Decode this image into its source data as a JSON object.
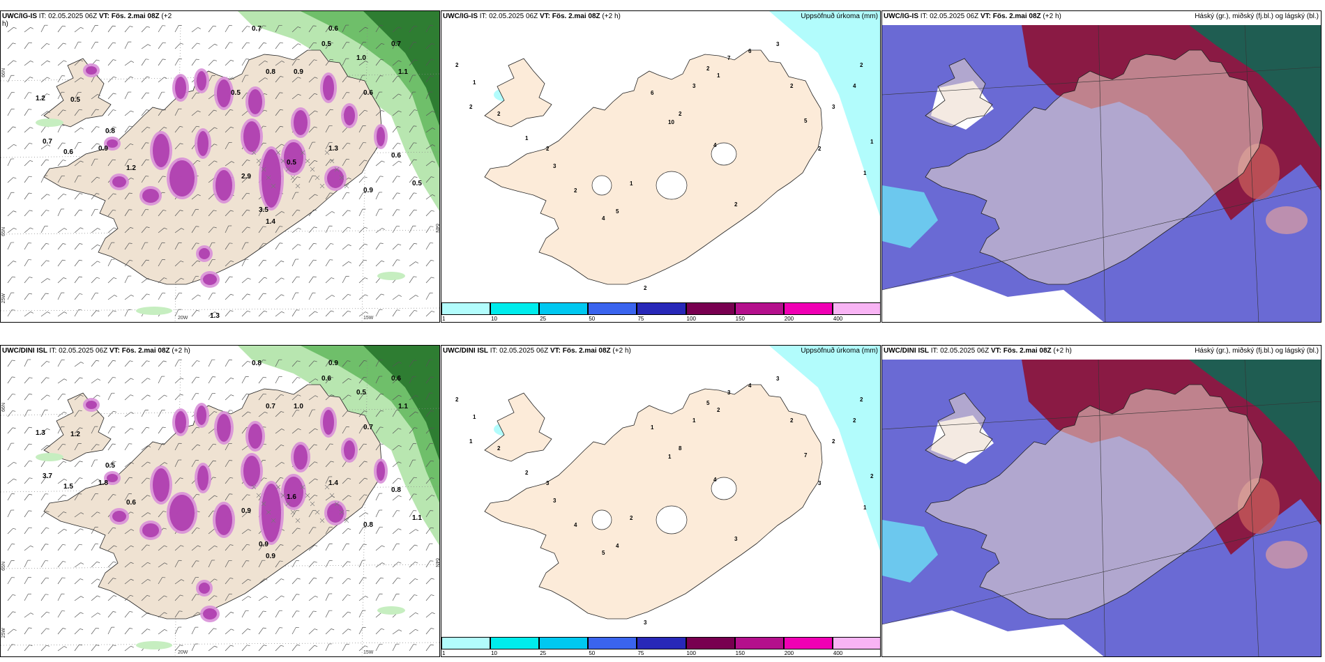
{
  "panels": [
    {
      "id": "p1",
      "model_prefix": "UWC/IG-IS",
      "header_rest": " IT: 02.05.2025 06Z ",
      "vt_label": "VT: ",
      "vt_value": "Fös. 2.mai 08Z",
      "lead": " (+2",
      "wrap": "h)"
    },
    {
      "id": "p2",
      "model_prefix": "UWC/IG-IS",
      "header_rest": " IT: 02.05.2025 06Z ",
      "vt_label": "VT: ",
      "vt_value": "Fös. 2.mai 08Z",
      "lead": " (+2 h)",
      "right_title": "Uppsöfnuð úrkoma (mm)"
    },
    {
      "id": "p3",
      "model_prefix": "UWC/IG-IS",
      "header_rest": " IT: 02.05.2025 06Z ",
      "vt_label": "VT: ",
      "vt_value": "Fös. 2.mai 08Z",
      "lead": " (+2 h)",
      "right_title": "Háský (gr.), miðský (fj.bl.) og lágský (bl.)"
    },
    {
      "id": "p4",
      "model_prefix": "UWC/DINI ISL",
      "header_rest": " IT: 02.05.2025 06Z ",
      "vt_label": "VT: ",
      "vt_value": "Fös. 2.mai 08Z",
      "lead": " (+2 h)"
    },
    {
      "id": "p5",
      "model_prefix": "UWC/DINI ISL",
      "header_rest": " IT: 02.05.2025 06Z ",
      "vt_label": "VT: ",
      "vt_value": "Fös. 2.mai 08Z",
      "lead": " (+2 h)",
      "right_title": "Uppsöfnuð úrkoma (mm)"
    },
    {
      "id": "p6",
      "model_prefix": "UWC/DINI ISL",
      "header_rest": " IT: 02.05.2025 06Z ",
      "vt_label": "VT: ",
      "vt_value": "Fös. 2.mai 08Z",
      "lead": " (+2 h)",
      "right_title": "Háský (gr.), miðský (fj.bl.) og lágský (bl.)"
    }
  ],
  "axis_labels": {
    "lon_20w": "20W",
    "lon_15w": "15W",
    "lat_66n": "66N",
    "lat_65n": "65N",
    "lat_64n": "64N",
    "lat_25w": "25W"
  },
  "precip_legend": {
    "colors": [
      "#b2fcfc",
      "#00ecec",
      "#00c8f0",
      "#3a64ee",
      "#2828b8",
      "#780050",
      "#b4108c",
      "#f000b4",
      "#f8b4f4"
    ],
    "ticks": [
      "1",
      "10",
      "25",
      "50",
      "75",
      "100",
      "150",
      "200",
      "400"
    ]
  },
  "panel1_labels": [
    "0.7",
    "0.6",
    "0.5",
    "0.8",
    "0.9",
    "1.0",
    "0.7",
    "1.1",
    "1.2",
    "0.5",
    "0.7",
    "0.6",
    "0.9",
    "1.2",
    "2.9",
    "3.5",
    "1.4",
    "0.5",
    "0.8",
    "1.3",
    "0.6",
    "0.9",
    "0.5",
    "0.6",
    "1.3",
    "0.5"
  ],
  "panel4_labels": [
    "0.8",
    "0.9",
    "0.6",
    "0.7",
    "1.0",
    "0.5",
    "0.6",
    "1.1",
    "1.3",
    "1.2",
    "3.7",
    "1.5",
    "1.8",
    "0.6",
    "0.9",
    "0.9",
    "0.9",
    "1.6",
    "0.5",
    "1.4",
    "0.7",
    "0.8",
    "1.1",
    "0.8"
  ],
  "panel2_labels": [
    "2",
    "1",
    "2",
    "2",
    "1",
    "2",
    "3",
    "2",
    "4",
    "5",
    "1",
    "6",
    "10",
    "2",
    "3",
    "2",
    "1",
    "7",
    "6",
    "3",
    "2",
    "5",
    "2",
    "3",
    "4",
    "2",
    "1",
    "1",
    "4",
    "2",
    "2"
  ],
  "panel5_labels": [
    "2",
    "1",
    "1",
    "2",
    "2",
    "3",
    "3",
    "4",
    "5",
    "4",
    "2",
    "1",
    "1",
    "8",
    "1",
    "5",
    "2",
    "3",
    "4",
    "3",
    "2",
    "7",
    "3",
    "2",
    "2",
    "2",
    "2",
    "1",
    "4",
    "3",
    "3"
  ]
}
